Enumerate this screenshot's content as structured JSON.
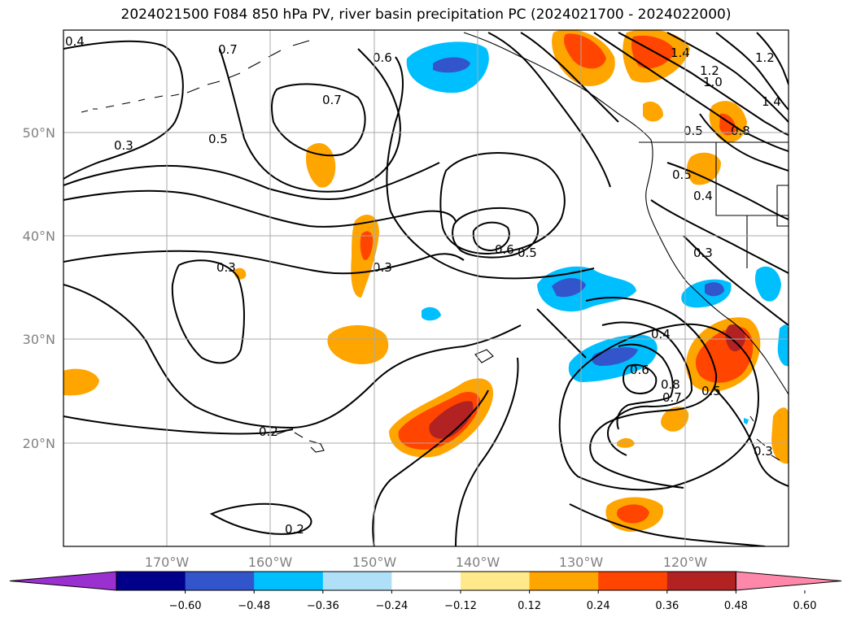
{
  "title": "2024021500 F084 850 hPa PV, river basin precipitation PC (2024021700 - 2024022000)",
  "map": {
    "lat_ticks": [
      "50°N",
      "40°N",
      "30°N",
      "20°N"
    ],
    "lon_ticks": [
      "170°W",
      "160°W",
      "150°W",
      "140°W",
      "130°W",
      "120°W"
    ],
    "contour_labels": [
      "0.4",
      "0.7",
      "0.6",
      "0.7",
      "0.3",
      "0.5",
      "0.6",
      "0.5",
      "0.3",
      "0.3",
      "0.2",
      "0.2",
      "1.4",
      "1.2",
      "1.0",
      "1.2",
      "1.4",
      "0.8",
      "0.5",
      "0.5",
      "0.4",
      "0.3",
      "0.4",
      "0.6",
      "0.8",
      "0.7",
      "0.5",
      "0.3"
    ]
  },
  "colorbar": {
    "ticks": [
      "−0.60",
      "−0.48",
      "−0.36",
      "−0.24",
      "−0.12",
      "0.12",
      "0.24",
      "0.36",
      "0.48",
      "0.60"
    ],
    "colors": [
      "#9b30d0",
      "#00008b",
      "#3355cc",
      "#00bfff",
      "#b0e0f8",
      "#ffffff",
      "#ffe98a",
      "#ffa500",
      "#ff4500",
      "#b22222",
      "#ff88aa"
    ]
  }
}
